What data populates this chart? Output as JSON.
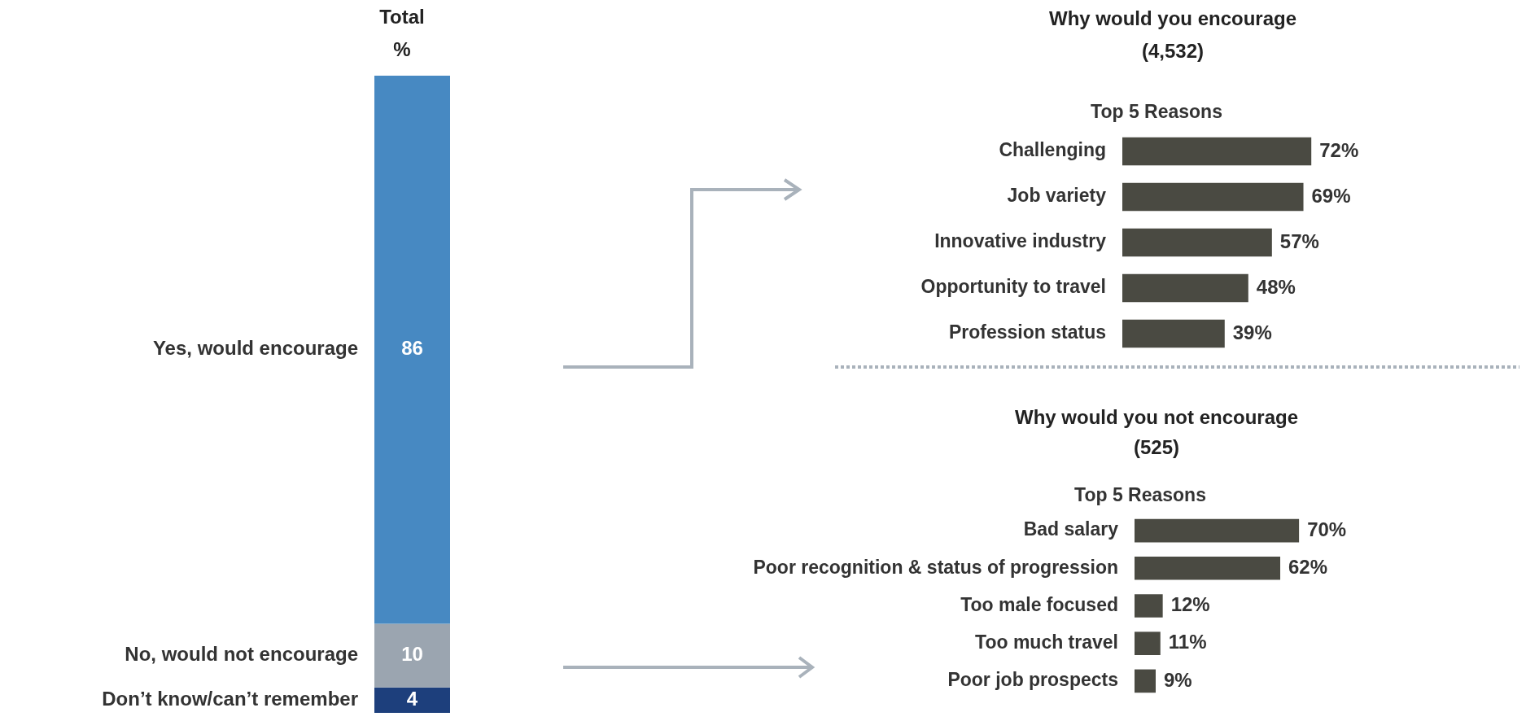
{
  "chart_data": [
    {
      "type": "bar",
      "title": "Total",
      "subtitle": "%",
      "categories": [
        null
      ],
      "stacked": true,
      "data_labels": true,
      "series": [
        {
          "name": "Don’t know/can’t remember",
          "color": "#1d3f7c",
          "values": [
            4
          ]
        },
        {
          "name": "No, would not encourage",
          "color": "#9ba5b0",
          "values": [
            10
          ]
        },
        {
          "name": "Yes, would encourage",
          "color": "#4789c2",
          "values": [
            86
          ]
        }
      ]
    },
    {
      "type": "bar",
      "orientation": "horizontal",
      "title": "Why would you encourage",
      "subtitle": "(4,532)",
      "annotations": [
        "Top 5 Reasons"
      ],
      "categories": [
        "Challenging",
        "Job variety",
        "Innovative industry",
        "Opportunity to travel",
        "Profession status"
      ],
      "values": [
        72,
        69,
        57,
        48,
        39
      ],
      "color": "#4a4a42",
      "value_labels": [
        "72%",
        "69%",
        "57%",
        "48%",
        "39%"
      ]
    },
    {
      "type": "bar",
      "orientation": "horizontal",
      "title": "Why would you not encourage",
      "subtitle": "(525)",
      "annotations": [
        "Top 5 Reasons"
      ],
      "categories": [
        "Bad salary",
        "Poor recognition & status of progression",
        "Too male focused",
        "Too much travel",
        "Poor job prospects"
      ],
      "values": [
        70,
        62,
        12,
        11,
        9
      ],
      "color": "#4a4a42",
      "value_labels": [
        "70%",
        "62%",
        "12%",
        "11%",
        "9%"
      ]
    }
  ]
}
